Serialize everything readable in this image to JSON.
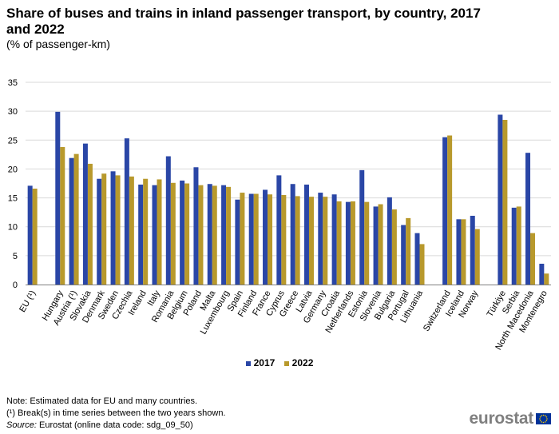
{
  "title": "Share of buses and trains in inland passenger transport, by country, 2017 and 2022",
  "subtitle": "(% of passenger-km)",
  "colors": {
    "s2017": "#2a46a6",
    "s2022": "#b8992c",
    "grid": "#d9d9d9",
    "axis": "#7f7f7f"
  },
  "notes": {
    "line1": "Note: Estimated data for EU and many countries.",
    "line2": "(¹) Break(s) in time series between the two years shown.",
    "source_label": "Source:",
    "source_text": "Eurostat (online data code: sdg_09_50)"
  },
  "logo": {
    "text": "eurostat",
    "icon": "eu-flag-icon"
  },
  "chart_data": {
    "type": "bar",
    "ylim": [
      0,
      35
    ],
    "yticks": [
      0,
      5,
      10,
      15,
      20,
      25,
      30,
      35
    ],
    "grid": true,
    "legend_position": "bottom",
    "categories": [
      "EU (¹)",
      "",
      "Hungary",
      "Austria (¹)",
      "Slovakia",
      "Denmark",
      "Sweden",
      "Czechia",
      "Ireland",
      "Italy",
      "Romania",
      "Belgium",
      "Poland",
      "Malta",
      "Luxembourg",
      "Spain",
      "Finland",
      "France",
      "Cyprus",
      "Greece",
      "Latvia",
      "Germany",
      "Croatia",
      "Netherlands",
      "Estonia",
      "Slovenia",
      "Bulgaria",
      "Portugal",
      "Lithuania",
      "",
      "Switzerland",
      "Iceland",
      "Norway",
      "",
      "Türkiye",
      "Serbia",
      "North Macedonia",
      "Montenegro"
    ],
    "series": [
      {
        "name": "2017",
        "values": [
          17.1,
          null,
          29.9,
          21.9,
          24.4,
          18.3,
          19.6,
          25.3,
          17.3,
          17.2,
          22.2,
          18.0,
          20.3,
          17.4,
          17.2,
          14.7,
          15.7,
          16.4,
          18.9,
          17.4,
          17.3,
          15.9,
          15.6,
          14.3,
          19.8,
          13.5,
          15.1,
          10.3,
          8.9,
          null,
          25.5,
          11.3,
          11.9,
          null,
          29.4,
          13.3,
          22.8,
          3.6
        ]
      },
      {
        "name": "2022",
        "values": [
          16.6,
          null,
          23.8,
          22.6,
          20.9,
          19.2,
          18.9,
          18.7,
          18.3,
          18.2,
          17.6,
          17.5,
          17.2,
          17.1,
          16.9,
          15.9,
          15.7,
          15.6,
          15.5,
          15.3,
          15.2,
          15.2,
          14.4,
          14.4,
          14.3,
          13.9,
          13.0,
          11.5,
          7.0,
          null,
          25.8,
          11.3,
          9.6,
          null,
          28.5,
          13.5,
          8.9,
          1.9
        ]
      }
    ]
  }
}
